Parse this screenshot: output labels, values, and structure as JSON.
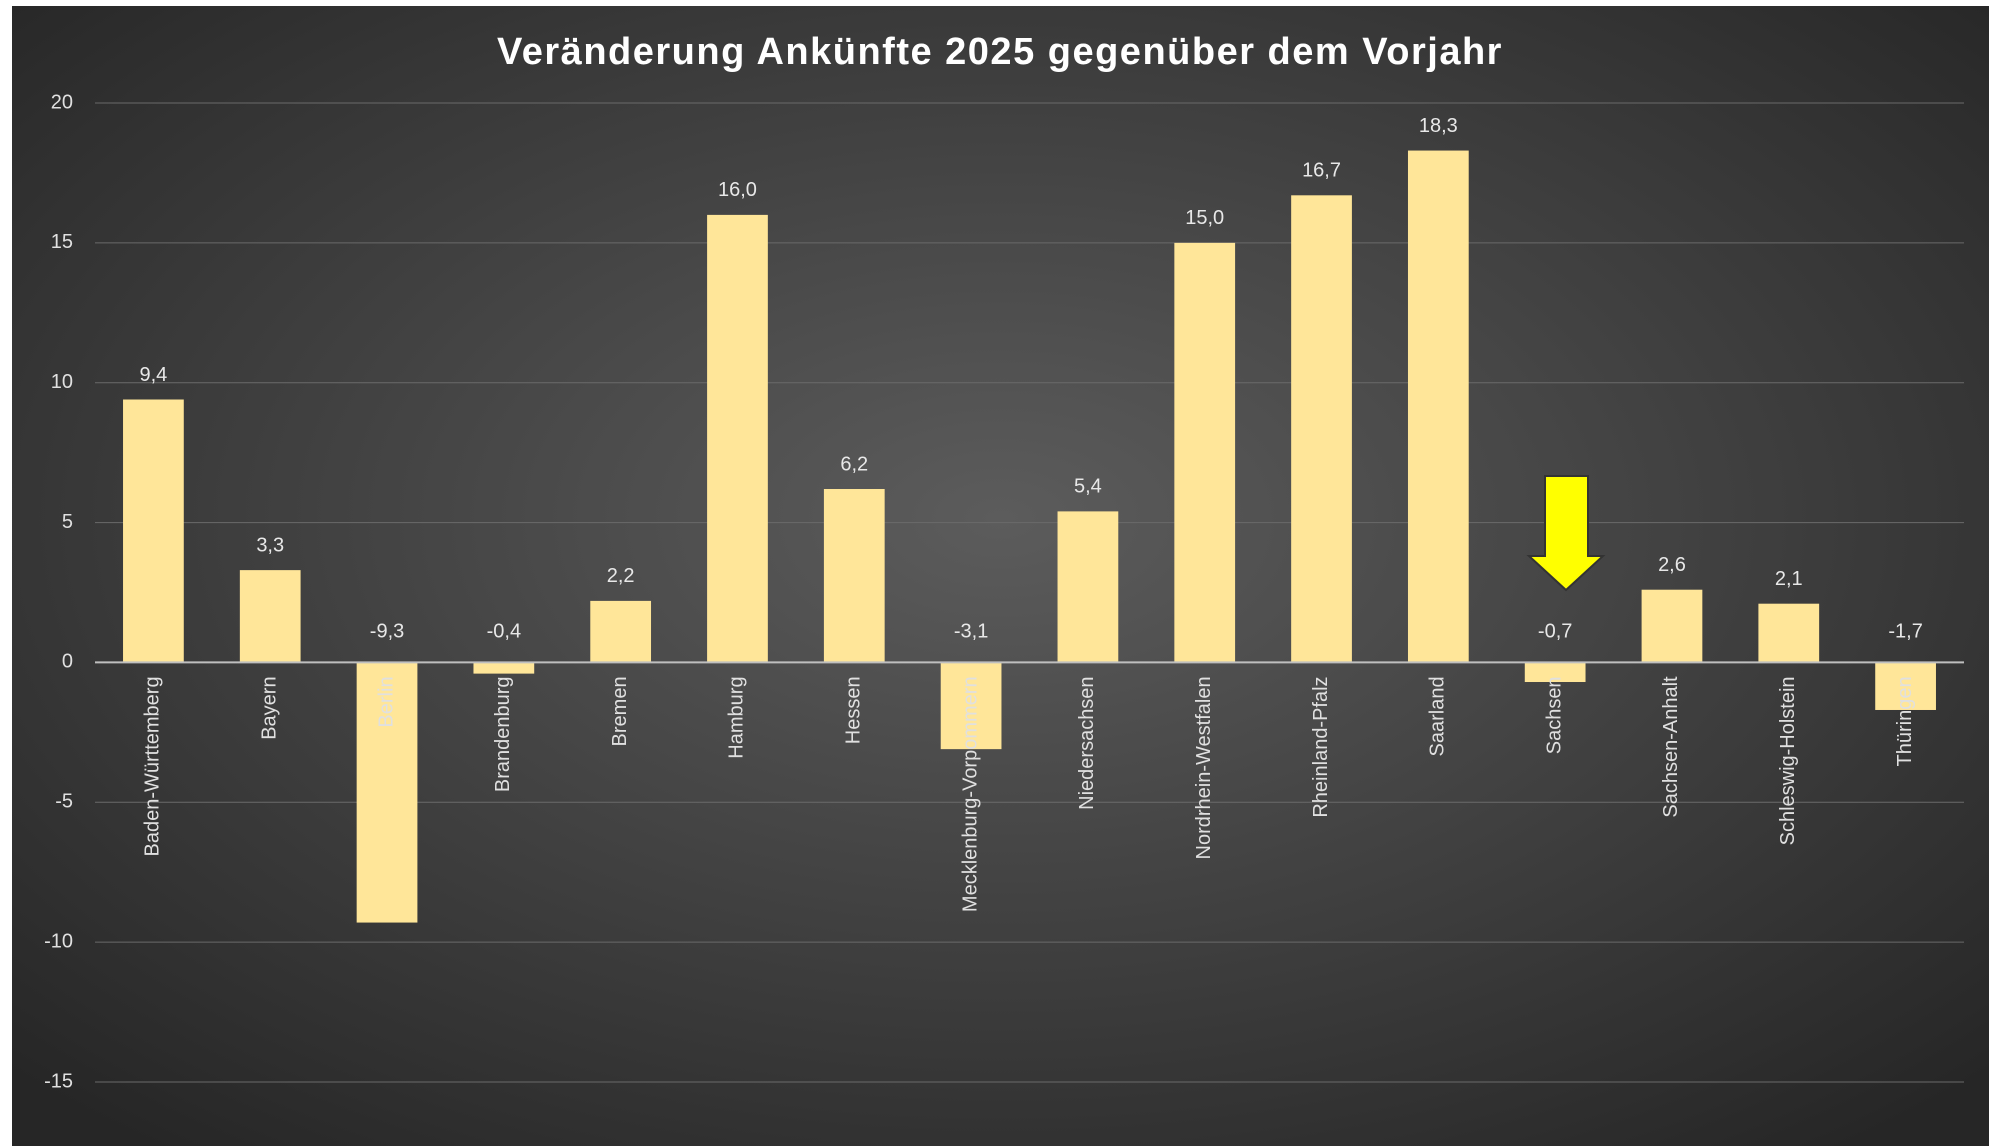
{
  "chart_data": {
    "type": "bar",
    "title": "Veränderung Ankünfte 2025 gegenüber dem Vorjahr",
    "categories": [
      "Baden-Württemberg",
      "Bayern",
      "Berlin",
      "Brandenburg",
      "Bremen",
      "Hamburg",
      "Hessen",
      "Mecklenburg-Vorpommern",
      "Niedersachsen",
      "Nordrhein-Westfalen",
      "Rheinland-Pfalz",
      "Saarland",
      "Sachsen",
      "Sachsen-Anhalt",
      "Schleswig-Holstein",
      "Thüringen"
    ],
    "values": [
      9.4,
      3.3,
      -9.3,
      -0.4,
      2.2,
      16.0,
      6.2,
      -3.1,
      5.4,
      15.0,
      16.7,
      18.3,
      -0.7,
      2.6,
      2.1,
      -1.7
    ],
    "value_labels": [
      "9,4",
      "3,3",
      "-9,3",
      "-0,4",
      "2,2",
      "16,0",
      "6,2",
      "-3,1",
      "5,4",
      "15,0",
      "16,7",
      "18,3",
      "-0,7",
      "2,6",
      "2,1",
      "-1,7"
    ],
    "color": "#ffe699",
    "ylim": [
      -15,
      20
    ],
    "yticks": [
      -15,
      -10,
      -5,
      0,
      5,
      10,
      15,
      20
    ],
    "grid": true
  }
}
